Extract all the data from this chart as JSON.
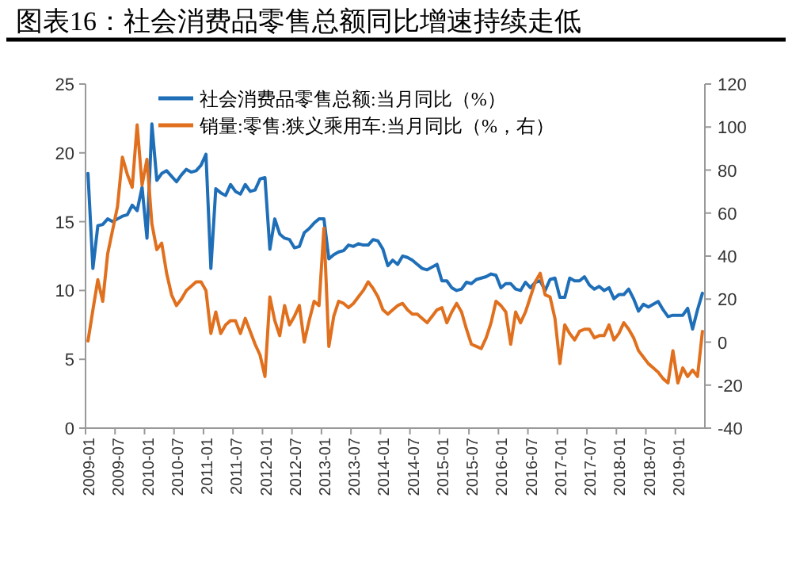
{
  "chart_data": {
    "type": "line",
    "title": "图表16：社会消费品零售总额同比增速持续走低",
    "categories": [
      "2009-01",
      null,
      null,
      null,
      null,
      null,
      "2009-07",
      null,
      null,
      null,
      null,
      null,
      "2010-01",
      null,
      null,
      null,
      null,
      null,
      "2010-07",
      null,
      null,
      null,
      null,
      null,
      "2011-01",
      null,
      null,
      null,
      null,
      null,
      "2011-07",
      null,
      null,
      null,
      null,
      null,
      "2012-01",
      null,
      null,
      null,
      null,
      null,
      "2012-07",
      null,
      null,
      null,
      null,
      null,
      "2013-01",
      null,
      null,
      null,
      null,
      null,
      "2013-07",
      null,
      null,
      null,
      null,
      null,
      "2014-01",
      null,
      null,
      null,
      null,
      null,
      "2014-07",
      null,
      null,
      null,
      null,
      null,
      "2015-01",
      null,
      null,
      null,
      null,
      null,
      "2015-07",
      null,
      null,
      null,
      null,
      null,
      "2016-01",
      null,
      null,
      null,
      null,
      null,
      "2016-07",
      null,
      null,
      null,
      null,
      null,
      "2017-01",
      null,
      null,
      null,
      null,
      null,
      "2017-07",
      null,
      null,
      null,
      null,
      null,
      "2018-01",
      null,
      null,
      null,
      null,
      null,
      "2018-07",
      null,
      null,
      null,
      null,
      null,
      "2019-01",
      null,
      null,
      null,
      null,
      null
    ],
    "series": [
      {
        "name": "社会消费品零售总额:当月同比（%）",
        "color": "#1f6fb8",
        "values": [
          18.5,
          11.6,
          14.7,
          14.8,
          15.2,
          15.0,
          15.2,
          15.4,
          15.5,
          16.2,
          15.8,
          17.5,
          13.8,
          22.1,
          18.0,
          18.5,
          18.7,
          18.3,
          17.9,
          18.4,
          18.8,
          18.6,
          18.7,
          19.1,
          19.9,
          11.6,
          17.4,
          17.1,
          16.9,
          17.7,
          17.2,
          17.0,
          17.7,
          17.2,
          17.3,
          18.1,
          18.2,
          13.0,
          15.2,
          14.1,
          13.8,
          13.7,
          13.1,
          13.2,
          14.2,
          14.5,
          14.9,
          15.2,
          15.2,
          12.3,
          12.6,
          12.8,
          12.9,
          13.3,
          13.2,
          13.4,
          13.3,
          13.3,
          13.7,
          13.6,
          13.0,
          11.8,
          12.2,
          11.9,
          12.5,
          12.4,
          12.2,
          11.9,
          11.6,
          11.5,
          11.7,
          11.9,
          10.7,
          10.7,
          10.2,
          10.0,
          10.1,
          10.6,
          10.5,
          10.8,
          10.9,
          11.0,
          11.2,
          11.1,
          10.2,
          10.5,
          10.5,
          10.1,
          10.0,
          10.6,
          10.2,
          10.6,
          10.7,
          10.0,
          10.8,
          10.9,
          9.5,
          9.5,
          10.9,
          10.7,
          10.7,
          11.0,
          10.4,
          10.1,
          10.3,
          10.0,
          10.2,
          9.4,
          9.7,
          9.7,
          10.1,
          9.4,
          8.5,
          9.0,
          8.8,
          9.0,
          9.2,
          8.6,
          8.1,
          8.2,
          8.2,
          8.2,
          8.7,
          7.2,
          8.6,
          9.8
        ]
      },
      {
        "name": "销量:零售:狭义乘用车:当月同比（%，右）",
        "color": "#e0701e",
        "axis": "y2",
        "values": [
          0.5,
          15,
          29,
          19,
          41,
          52,
          63,
          86,
          78,
          72,
          101,
          73,
          85,
          55,
          43,
          46,
          32,
          22,
          17,
          20,
          24,
          26,
          28,
          28,
          24,
          4,
          14,
          4,
          8,
          10,
          10,
          4,
          11,
          5,
          -1,
          -6,
          -16,
          21,
          10,
          3,
          17,
          8,
          12,
          17,
          0,
          10,
          19,
          17,
          53,
          -2,
          12,
          19,
          18,
          16,
          18,
          21,
          24,
          28,
          25,
          21,
          15,
          13,
          15,
          17,
          18,
          15,
          13,
          13,
          11,
          9,
          12,
          15,
          16,
          9,
          14,
          18,
          14,
          6,
          -1,
          -2,
          -3,
          2,
          9,
          19,
          17,
          14,
          -1,
          14,
          9,
          14,
          21,
          28,
          32,
          22,
          21,
          11,
          -10,
          8,
          4,
          1,
          5,
          6,
          6,
          2,
          3,
          3,
          8,
          1,
          4,
          9,
          6,
          2,
          -4,
          -7,
          -10,
          -12,
          -14,
          -17,
          -19,
          -4,
          -19,
          -12,
          -16,
          -13,
          -16,
          5
        ]
      }
    ],
    "ylim": [
      0,
      25
    ],
    "yticks": [
      0,
      5,
      10,
      15,
      20,
      25
    ],
    "y2lim": [
      -40,
      120
    ],
    "y2ticks": [
      -40,
      -20,
      0,
      20,
      40,
      60,
      80,
      100,
      120
    ],
    "grid": false,
    "legend": "top",
    "marker": "none",
    "line_style": "solid"
  }
}
